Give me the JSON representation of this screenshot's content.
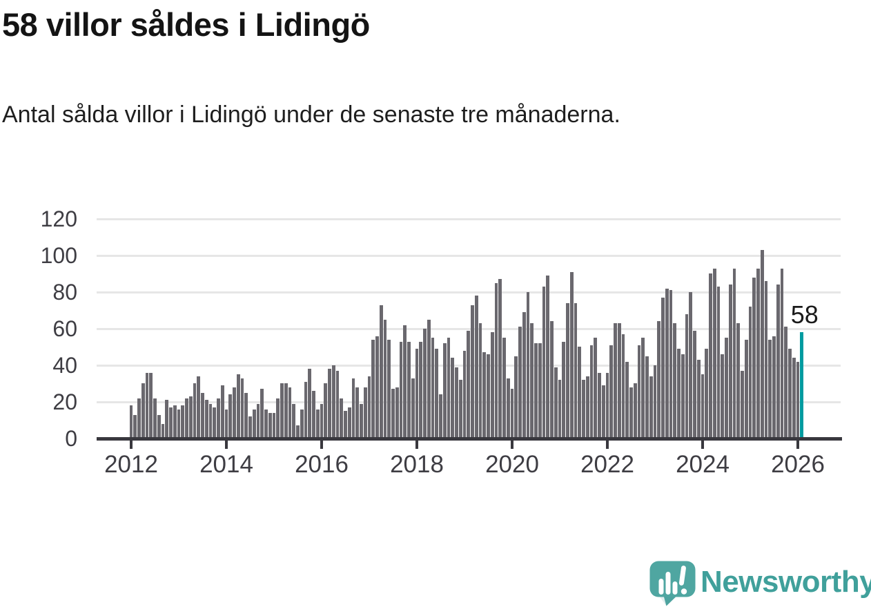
{
  "header": {
    "title": "58 villor såldes i Lidingö",
    "subtitle": "Antal sålda villor i Lidingö under de senaste tre månaderna."
  },
  "chart_data": {
    "type": "bar",
    "title": "58 villor såldes i Lidingö",
    "subtitle": "Antal sålda villor i Lidingö under de senaste tre månaderna.",
    "x_frequency": "monthly",
    "x_start_month": "2012-01",
    "x_end_month": "2026-02",
    "x_tick_labels": [
      "2012",
      "2014",
      "2016",
      "2018",
      "2020",
      "2022",
      "2024",
      "2026"
    ],
    "yticks": [
      0,
      20,
      40,
      60,
      80,
      100,
      120
    ],
    "ylim": [
      0,
      120
    ],
    "grid": "horizontal",
    "bar_color": "#6a686e",
    "highlight_color": "#009ba0",
    "highlight_label": "58",
    "highlight_value": 58,
    "values": [
      18,
      13,
      22,
      30,
      36,
      36,
      22,
      13,
      8,
      21,
      17,
      18,
      16,
      18,
      22,
      23,
      30,
      34,
      25,
      21,
      19,
      17,
      22,
      29,
      16,
      24,
      28,
      35,
      33,
      25,
      12,
      16,
      19,
      27,
      16,
      14,
      14,
      22,
      30,
      30,
      28,
      19,
      7,
      16,
      31,
      38,
      26,
      16,
      19,
      30,
      38,
      40,
      37,
      22,
      15,
      17,
      33,
      28,
      19,
      28,
      34,
      54,
      56,
      73,
      65,
      54,
      27,
      28,
      53,
      62,
      53,
      33,
      49,
      53,
      60,
      65,
      55,
      49,
      24,
      52,
      55,
      44,
      39,
      32,
      48,
      59,
      73,
      78,
      63,
      47,
      46,
      58,
      85,
      87,
      55,
      33,
      27,
      45,
      61,
      69,
      80,
      63,
      52,
      52,
      83,
      89,
      64,
      39,
      32,
      53,
      74,
      91,
      74,
      50,
      32,
      34,
      51,
      55,
      36,
      29,
      36,
      51,
      63,
      63,
      57,
      42,
      28,
      30,
      51,
      55,
      45,
      34,
      40,
      64,
      77,
      82,
      81,
      63,
      49,
      46,
      68,
      80,
      59,
      43,
      35,
      49,
      90,
      93,
      83,
      46,
      55,
      84,
      93,
      63,
      37,
      54,
      72,
      88,
      93,
      103,
      86,
      54,
      56,
      84,
      93,
      61,
      49,
      44,
      42,
      58
    ]
  },
  "footer": {
    "brand": "Newsworthy",
    "logo_bubble_color": "#4fa6a1",
    "logo_text_color": "#40a09b"
  }
}
